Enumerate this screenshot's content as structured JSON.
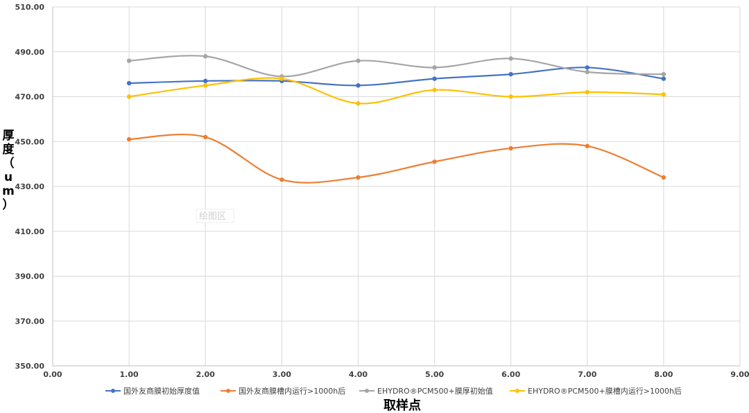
{
  "chart_data": {
    "type": "line",
    "smooth": true,
    "xlabel": "取样点",
    "ylabel": "厚度（um）",
    "xlim": [
      0,
      9
    ],
    "ylim": [
      350,
      510
    ],
    "x_ticks": [
      "0.00",
      "1.00",
      "2.00",
      "3.00",
      "4.00",
      "5.00",
      "6.00",
      "7.00",
      "8.00",
      "9.00"
    ],
    "y_ticks": [
      "350.00",
      "370.00",
      "390.00",
      "410.00",
      "430.00",
      "450.00",
      "470.00",
      "490.00",
      "510.00"
    ],
    "grid": true,
    "legend_position": "bottom",
    "plot_area_label": "绘图区",
    "x": [
      1,
      2,
      3,
      4,
      5,
      6,
      7,
      8
    ],
    "series": [
      {
        "name": "国外友商膜初始厚度值",
        "color": "#4472c4",
        "values": [
          476,
          477,
          477,
          475,
          478,
          480,
          483,
          478
        ]
      },
      {
        "name": "国外友商膜槽内运行>1000h后",
        "color": "#ed7d31",
        "values": [
          451,
          452,
          433,
          434,
          441,
          447,
          448,
          434
        ]
      },
      {
        "name": "EHYDRO®PCM500+膜厚初始值",
        "color": "#a5a5a5",
        "values": [
          486,
          488,
          479,
          486,
          483,
          487,
          481,
          480
        ]
      },
      {
        "name": "EHYDRO®PCM500+膜槽内运行>1000h后",
        "color": "#ffc000",
        "values": [
          470,
          475,
          478,
          467,
          473,
          470,
          472,
          471
        ]
      }
    ]
  }
}
